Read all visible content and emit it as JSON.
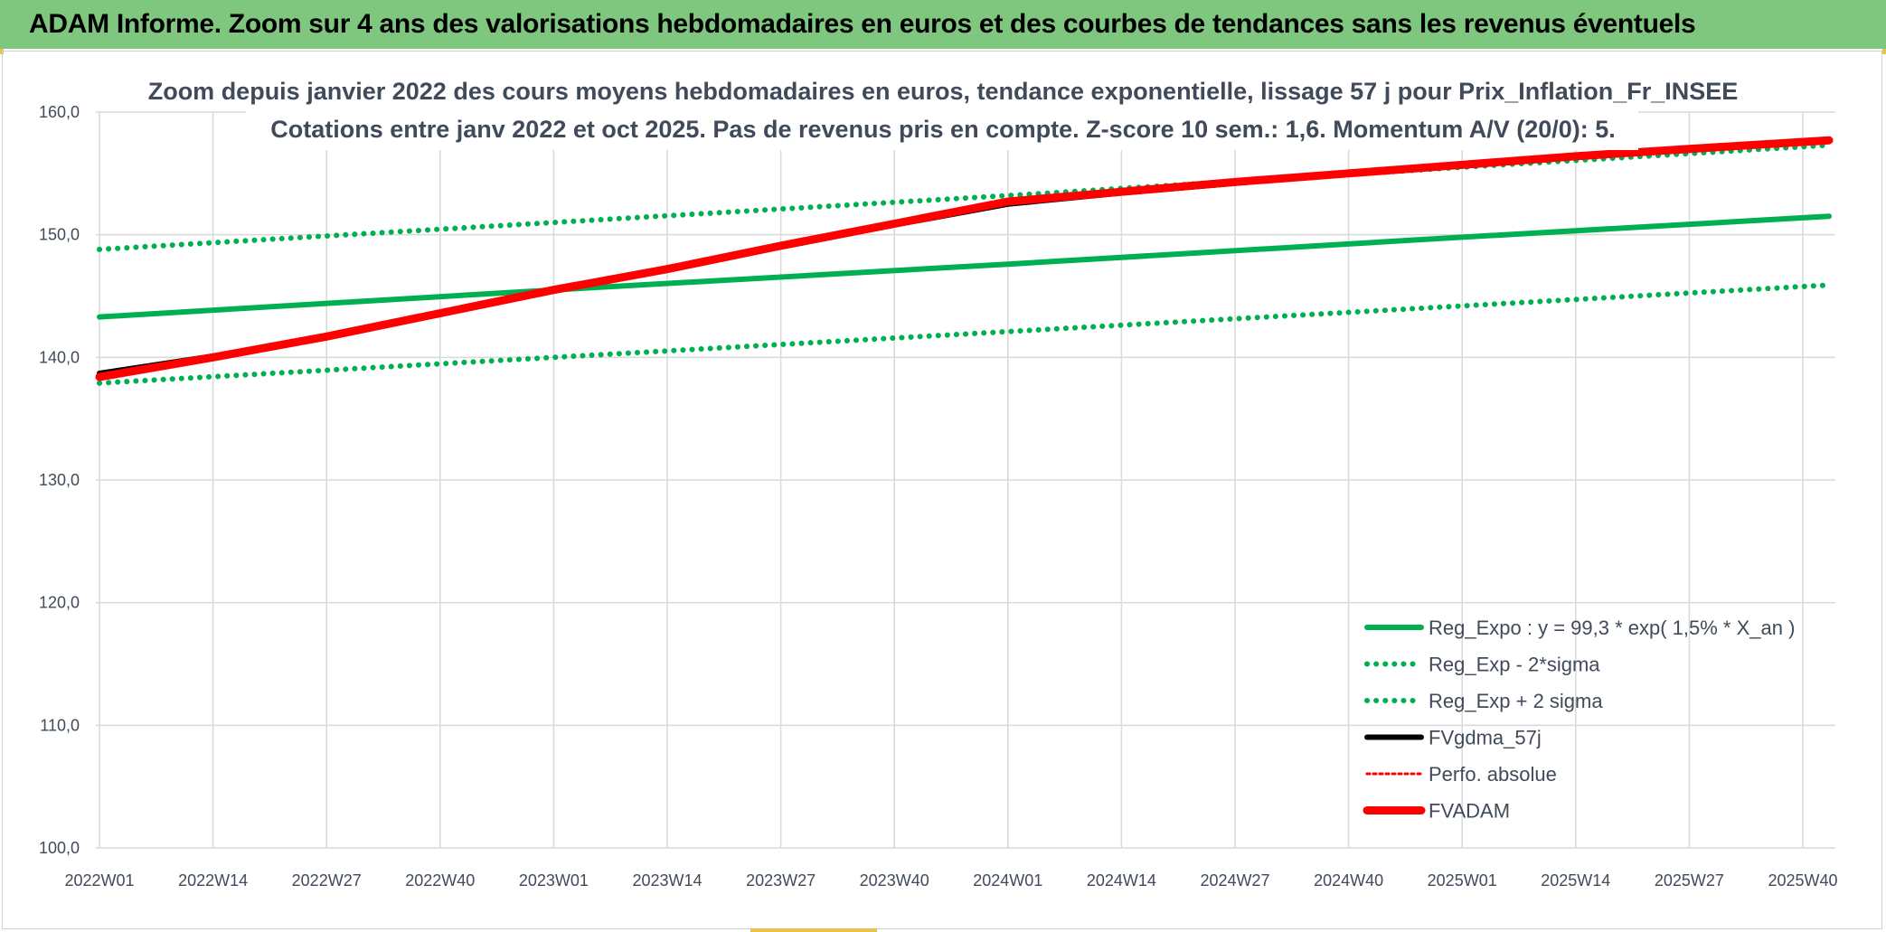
{
  "banner": {
    "title": "ADAM Informe. Zoom sur 4 ans des valorisations hebdomadaires en euros et des courbes de tendances sans les revenus éventuels"
  },
  "chart_data": {
    "type": "line",
    "title": "Zoom depuis janvier 2022 des cours moyens hebdomadaires en euros, tendance exponentielle, lissage 57 j pour Prix_Inflation_Fr_INSEE",
    "subtitle": "Cotations entre janv 2022 et oct 2025. Pas de revenus pris en compte. Z-score 10 sem.: 1,6. Momentum A/V (20/0): 5.",
    "xlabel": "",
    "ylabel": "",
    "x_ticks": [
      "2022W01",
      "2022W14",
      "2022W27",
      "2022W40",
      "2023W01",
      "2023W14",
      "2023W27",
      "2023W40",
      "2024W01",
      "2024W14",
      "2024W27",
      "2024W40",
      "2025W01",
      "2025W14",
      "2025W27",
      "2025W40"
    ],
    "y_ticks": [
      "100,0",
      "110,0",
      "120,0",
      "130,0",
      "140,0",
      "150,0",
      "160,0"
    ],
    "ylim": [
      100,
      160
    ],
    "grid": true,
    "legend_position": "bottom-right",
    "series": [
      {
        "name": "Reg_Expo : y = 99,3 * exp( 1,5% *  X_an )",
        "color": "#00b050",
        "style": "solid",
        "width": "medium",
        "points": [
          [
            "2022W01",
            143.3
          ],
          [
            "2023W01",
            145.5
          ],
          [
            "2024W01",
            147.6
          ],
          [
            "2025W01",
            149.8
          ],
          [
            "2025W43",
            151.5
          ]
        ]
      },
      {
        "name": "Reg_Exp - 2*sigma",
        "color": "#00b050",
        "style": "dotted",
        "width": "medium",
        "points": [
          [
            "2022W01",
            137.9
          ],
          [
            "2023W01",
            140.0
          ],
          [
            "2024W01",
            142.1
          ],
          [
            "2025W01",
            144.2
          ],
          [
            "2025W43",
            145.9
          ]
        ]
      },
      {
        "name": "Reg_Exp + 2 sigma",
        "color": "#00b050",
        "style": "dotted",
        "width": "medium",
        "points": [
          [
            "2022W01",
            148.8
          ],
          [
            "2023W01",
            151.0
          ],
          [
            "2024W01",
            153.2
          ],
          [
            "2025W01",
            155.5
          ],
          [
            "2025W43",
            157.3
          ]
        ]
      },
      {
        "name": "FVgdma_57j",
        "color": "#000000",
        "style": "solid",
        "width": "medium",
        "points": [
          [
            "2022W01",
            138.7
          ],
          [
            "2022W14",
            140.1
          ],
          [
            "2022W27",
            141.7
          ],
          [
            "2022W40",
            143.5
          ],
          [
            "2023W01",
            145.5
          ],
          [
            "2023W14",
            147.3
          ],
          [
            "2023W27",
            149.0
          ],
          [
            "2023W40",
            150.8
          ],
          [
            "2024W01",
            152.5
          ],
          [
            "2024W14",
            153.4
          ],
          [
            "2024W27",
            154.2
          ],
          [
            "2024W40",
            155.0
          ],
          [
            "2025W01",
            155.6
          ],
          [
            "2025W14",
            156.3
          ],
          [
            "2025W27",
            156.9
          ],
          [
            "2025W43",
            157.7
          ]
        ]
      },
      {
        "name": "Perfo. absolue",
        "color": "#ff0000",
        "style": "dotted",
        "width": "thin",
        "points": [
          [
            "2022W01",
            138.4
          ],
          [
            "2022W14",
            140.0
          ],
          [
            "2022W27",
            141.7
          ],
          [
            "2022W40",
            143.6
          ],
          [
            "2023W01",
            145.5
          ],
          [
            "2023W14",
            147.2
          ],
          [
            "2023W27",
            149.1
          ],
          [
            "2023W40",
            150.9
          ],
          [
            "2024W01",
            152.7
          ],
          [
            "2024W14",
            153.5
          ],
          [
            "2024W27",
            154.3
          ],
          [
            "2024W40",
            155.0
          ],
          [
            "2025W01",
            155.7
          ],
          [
            "2025W14",
            156.4
          ],
          [
            "2025W27",
            157.0
          ],
          [
            "2025W43",
            157.7
          ]
        ]
      },
      {
        "name": "FVADAM",
        "color": "#ff0000",
        "style": "solid",
        "width": "thick",
        "points": [
          [
            "2022W01",
            138.4
          ],
          [
            "2022W14",
            140.0
          ],
          [
            "2022W27",
            141.7
          ],
          [
            "2022W40",
            143.6
          ],
          [
            "2023W01",
            145.5
          ],
          [
            "2023W14",
            147.2
          ],
          [
            "2023W27",
            149.1
          ],
          [
            "2023W40",
            150.9
          ],
          [
            "2024W01",
            152.7
          ],
          [
            "2024W14",
            153.5
          ],
          [
            "2024W27",
            154.3
          ],
          [
            "2024W40",
            155.0
          ],
          [
            "2025W01",
            155.7
          ],
          [
            "2025W14",
            156.4
          ],
          [
            "2025W27",
            157.0
          ],
          [
            "2025W43",
            157.7
          ]
        ]
      }
    ]
  }
}
